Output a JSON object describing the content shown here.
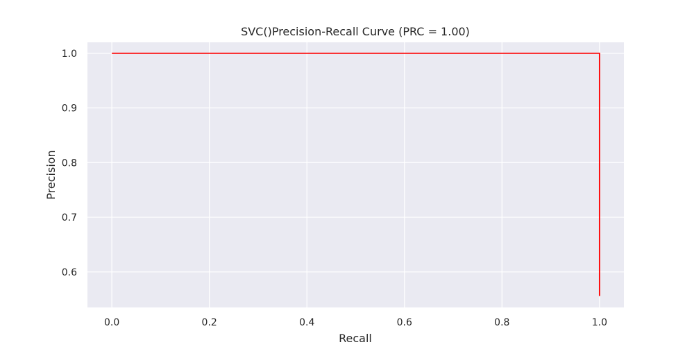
{
  "chart_data": {
    "type": "line",
    "title": "SVC()Precision-Recall Curve (PRC = 1.00)",
    "xlabel": "Recall",
    "ylabel": "Precision",
    "xlim": [
      -0.05,
      1.05
    ],
    "ylim": [
      0.535,
      1.02
    ],
    "x_ticks": [
      0.0,
      0.2,
      0.4,
      0.6,
      0.8,
      1.0
    ],
    "x_tick_labels": [
      "0.0",
      "0.2",
      "0.4",
      "0.6",
      "0.8",
      "1.0"
    ],
    "y_ticks": [
      0.6,
      0.7,
      0.8,
      0.9,
      1.0
    ],
    "y_tick_labels": [
      "0.6",
      "0.7",
      "0.8",
      "0.9",
      "1.0"
    ],
    "grid": true,
    "series": [
      {
        "color": "#ff0000",
        "x": [
          0.0,
          1.0,
          1.0
        ],
        "y": [
          1.0,
          1.0,
          0.556
        ]
      }
    ]
  }
}
